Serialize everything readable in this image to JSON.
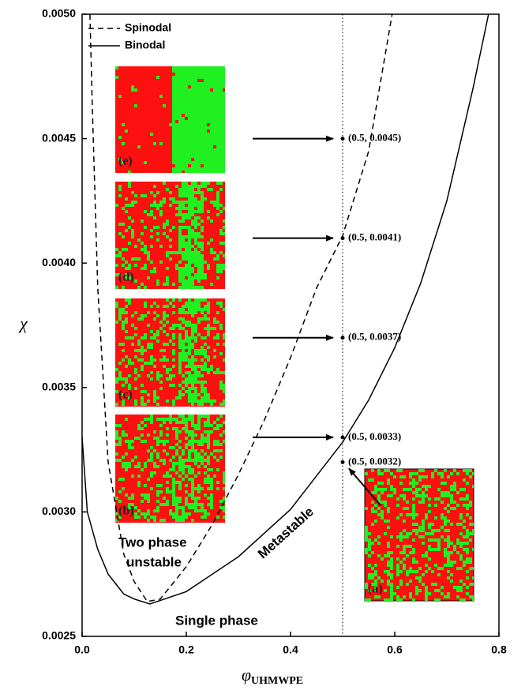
{
  "chart_data": {
    "type": "line",
    "ylabel": "χ",
    "xlabel_symbol": "φ",
    "xlabel_subscript": "UHMWPE",
    "xlim": [
      0,
      0.8
    ],
    "ylim": [
      0.0025,
      0.005
    ],
    "xticks": [
      {
        "value": 0,
        "label": "0.0"
      },
      0.2,
      0.4,
      0.6,
      0.8
    ],
    "yticks": [
      {
        "value": 0.0025,
        "label": "0.0025"
      },
      {
        "value": 0.003,
        "label": "0.0030"
      },
      {
        "value": 0.0035,
        "label": "0.0035"
      },
      {
        "value": 0.004,
        "label": "0.0040"
      },
      {
        "value": 0.0045,
        "label": "0.0045"
      },
      {
        "value": 0.005,
        "label": "0.0050"
      }
    ],
    "legend": "upper left",
    "series": [
      {
        "name": "Spinodal",
        "color": "#000000",
        "style": "dashed",
        "x": [
          0.015,
          0.02,
          0.03,
          0.05,
          0.08,
          0.1,
          0.125,
          0.15,
          0.2,
          0.25,
          0.3,
          0.35,
          0.4,
          0.45,
          0.5,
          0.55,
          0.595
        ],
        "values": [
          0.005,
          0.0046,
          0.0039,
          0.0032,
          0.00283,
          0.00272,
          0.00264,
          0.00265,
          0.00278,
          0.00295,
          0.00315,
          0.00337,
          0.00362,
          0.0039,
          0.00411,
          0.00445,
          0.005
        ]
      },
      {
        "name": "Binodal",
        "color": "#000000",
        "style": "solid",
        "x": [
          0,
          0.01,
          0.03,
          0.05,
          0.08,
          0.1,
          0.13,
          0.2,
          0.3,
          0.4,
          0.5,
          0.55,
          0.6,
          0.65,
          0.7,
          0.75,
          0.78
        ],
        "values": [
          0.0033,
          0.003,
          0.00285,
          0.00275,
          0.00267,
          0.00265,
          0.00263,
          0.00268,
          0.00282,
          0.00301,
          0.00328,
          0.00345,
          0.00366,
          0.00392,
          0.00425,
          0.0047,
          0.005
        ]
      }
    ],
    "reference_x": 0.5,
    "points": {
      "x": [
        0.5,
        0.5,
        0.5,
        0.5,
        0.5
      ],
      "values": [
        0.0045,
        0.0041,
        0.0037,
        0.0033,
        0.0032
      ],
      "value_labels": [
        "(0.5, 0.0045)",
        "(0.5, 0.0041)",
        "(0.5, 0.0037)",
        "(0.5, 0.0033)",
        "(0.5, 0.0032)"
      ]
    },
    "snapshots": [
      "(e)",
      "(d)",
      "(c)",
      "(b)",
      "(a)"
    ],
    "annotations": [
      "Two phase",
      "unstable",
      "Metastable",
      "Single phase"
    ]
  }
}
